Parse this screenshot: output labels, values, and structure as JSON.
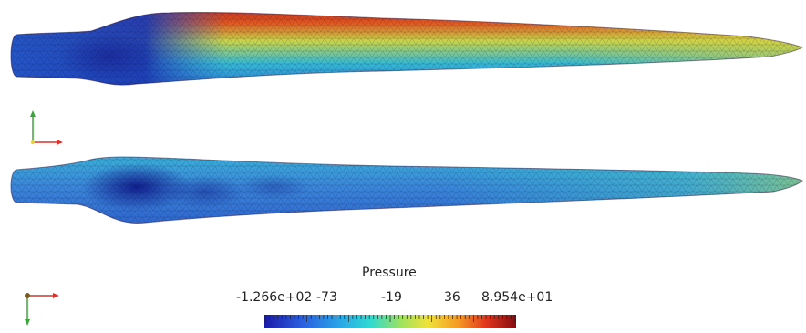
{
  "colorbar": {
    "title": "Pressure",
    "min_label": "-1.266e+02",
    "max_label": "8.954e+01",
    "tick_labels": [
      "-73",
      "-19",
      "36"
    ],
    "colormap": [
      "#3b4cc0",
      "#2a6fd6",
      "#26a6e0",
      "#2fd3c8",
      "#8be06a",
      "#e8e23a",
      "#f5a623",
      "#e0461e",
      "#8b0f14"
    ]
  },
  "views": [
    {
      "name": "top",
      "dominant_color": "#3a7fd8",
      "hot_color": "#c4281e"
    },
    {
      "name": "bottom",
      "dominant_color": "#2f6fd0",
      "cold_color": "#13249b"
    }
  ],
  "axes": {
    "x_color": "#d9342b",
    "y_color": "#3aa63a",
    "z_color": "#7a5a1e"
  }
}
